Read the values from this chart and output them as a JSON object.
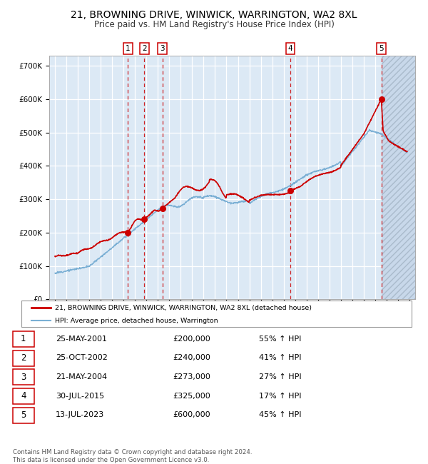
{
  "title": "21, BROWNING DRIVE, WINWICK, WARRINGTON, WA2 8XL",
  "subtitle": "Price paid vs. HM Land Registry's House Price Index (HPI)",
  "title_fontsize": 10,
  "subtitle_fontsize": 8.5,
  "plot_bg_color": "#dce9f5",
  "red_line_color": "#cc0000",
  "blue_line_color": "#7aafd4",
  "sale_points": [
    {
      "date_num": 2001.39,
      "price": 200000,
      "label": "1"
    },
    {
      "date_num": 2002.82,
      "price": 240000,
      "label": "2"
    },
    {
      "date_num": 2004.39,
      "price": 273000,
      "label": "3"
    },
    {
      "date_num": 2015.58,
      "price": 325000,
      "label": "4"
    },
    {
      "date_num": 2023.54,
      "price": 600000,
      "label": "5"
    }
  ],
  "xlim": [
    1994.5,
    2026.5
  ],
  "ylim": [
    0,
    730000
  ],
  "yticks": [
    0,
    100000,
    200000,
    300000,
    400000,
    500000,
    600000,
    700000
  ],
  "ytick_labels": [
    "£0",
    "£100K",
    "£200K",
    "£300K",
    "£400K",
    "£500K",
    "£600K",
    "£700K"
  ],
  "xticks": [
    1995,
    1996,
    1997,
    1998,
    1999,
    2000,
    2001,
    2002,
    2003,
    2004,
    2005,
    2006,
    2007,
    2008,
    2009,
    2010,
    2011,
    2012,
    2013,
    2014,
    2015,
    2016,
    2017,
    2018,
    2019,
    2020,
    2021,
    2022,
    2023,
    2024,
    2025,
    2026
  ],
  "legend_line1": "21, BROWNING DRIVE, WINWICK, WARRINGTON, WA2 8XL (detached house)",
  "legend_line2": "HPI: Average price, detached house, Warrington",
  "table_rows": [
    [
      "1",
      "25-MAY-2001",
      "£200,000",
      "55% ↑ HPI"
    ],
    [
      "2",
      "25-OCT-2002",
      "£240,000",
      "41% ↑ HPI"
    ],
    [
      "3",
      "21-MAY-2004",
      "£273,000",
      "27% ↑ HPI"
    ],
    [
      "4",
      "30-JUL-2015",
      "£325,000",
      "17% ↑ HPI"
    ],
    [
      "5",
      "13-JUL-2023",
      "£600,000",
      "45% ↑ HPI"
    ]
  ],
  "footer": "Contains HM Land Registry data © Crown copyright and database right 2024.\nThis data is licensed under the Open Government Licence v3.0.",
  "hatch_start": 2023.54,
  "hatch_end": 2026.5,
  "grid_color": "#ffffff",
  "label_box_color": "#cc0000"
}
